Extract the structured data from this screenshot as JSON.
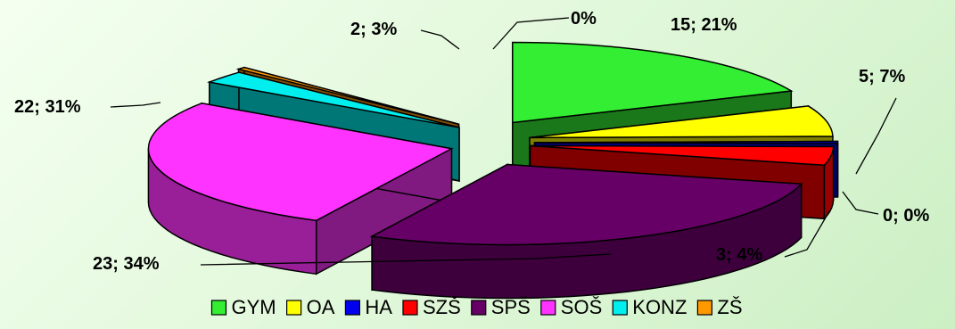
{
  "chart_data": {
    "type": "pie",
    "variant": "3d-exploded",
    "title": "",
    "slices": [
      {
        "name": "GYM",
        "value": 15,
        "percent": "21%",
        "label": "15; 21%",
        "color": "#33ee33"
      },
      {
        "name": "OA",
        "value": 5,
        "percent": "7%",
        "label": "5; 7%",
        "color": "#ffff00"
      },
      {
        "name": "HA",
        "value": 0,
        "percent": "0%",
        "label": "0; 0%",
        "color": "#0000ee"
      },
      {
        "name": "SZŠ",
        "value": 3,
        "percent": "4%",
        "label": "3; 4%",
        "color": "#ff0000"
      },
      {
        "name": "SPŠ",
        "value": 23,
        "percent": "34%",
        "label": "23; 34%",
        "color": "#660066"
      },
      {
        "name": "SOŠ",
        "value": 22,
        "percent": "31%",
        "label": "22; 31%",
        "color": "#ff33ff"
      },
      {
        "name": "KONZ",
        "value": 2,
        "percent": "3%",
        "label": "2; 3%",
        "color": "#00eeee"
      },
      {
        "name": "ZŠ",
        "value": 0,
        "percent": "0%",
        "label": "0%",
        "color": "#ff9900"
      }
    ],
    "legend": {
      "position": "bottom",
      "entries": [
        "GYM",
        "OA",
        "HA",
        "SZŠ",
        "SPŠ",
        "SOŠ",
        "KONZ",
        "ZŠ"
      ]
    },
    "data_labels": "outside-with-leader-lines"
  }
}
